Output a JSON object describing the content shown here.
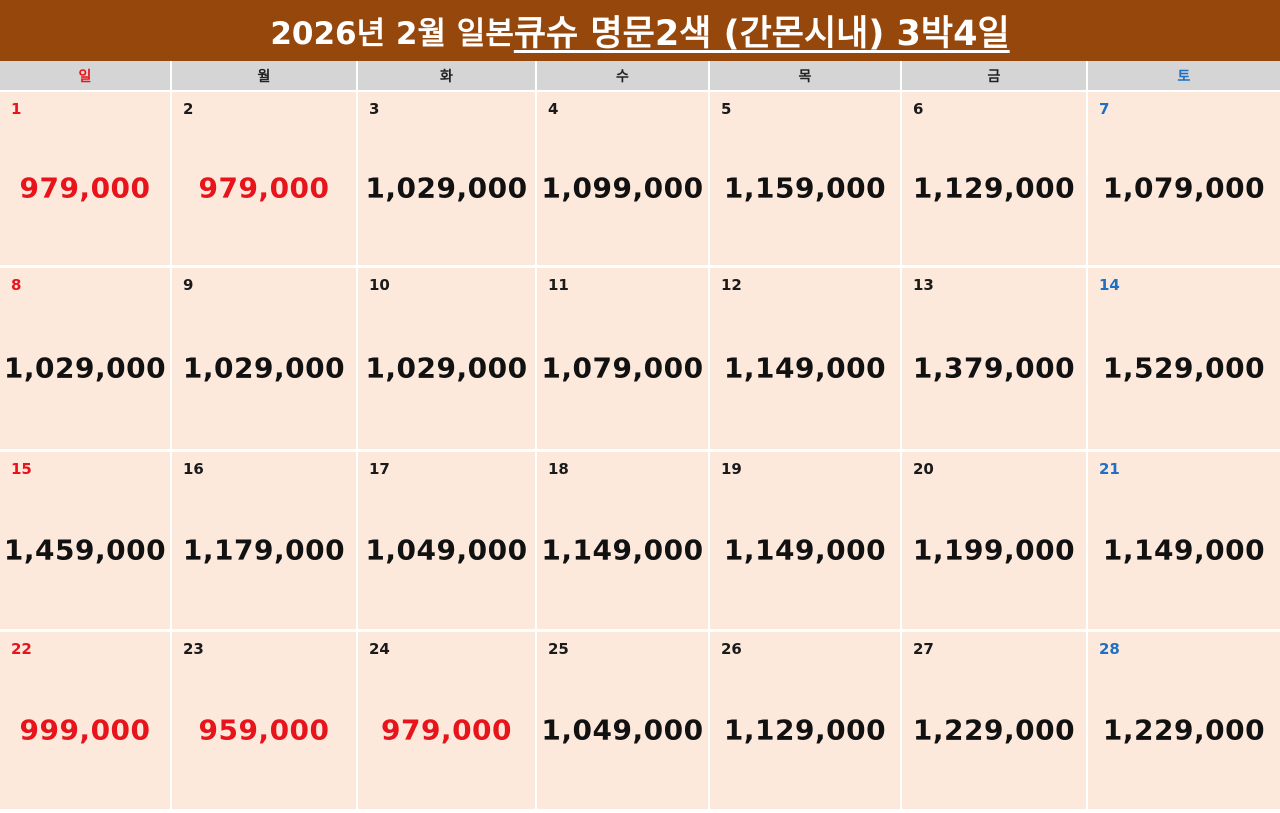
{
  "title": {
    "part1": "2026년 2월 일본 ",
    "part2": "큐슈 명문2색 (간몬시내) 3박4일"
  },
  "colors": {
    "banner": "#96470c",
    "cell_bg": "#fce9dc",
    "header_bg": "#d5d5d5",
    "sunday": "#e8141b",
    "saturday": "#1f6fc4",
    "low_price": "#e8141b",
    "price": "#111111"
  },
  "weekdays": [
    "일",
    "월",
    "화",
    "수",
    "목",
    "금",
    "토"
  ],
  "weeks": [
    [
      {
        "day": "1",
        "price": "979,000",
        "low": true
      },
      {
        "day": "2",
        "price": "979,000",
        "low": true
      },
      {
        "day": "3",
        "price": "1,029,000",
        "low": false
      },
      {
        "day": "4",
        "price": "1,099,000",
        "low": false
      },
      {
        "day": "5",
        "price": "1,159,000",
        "low": false
      },
      {
        "day": "6",
        "price": "1,129,000",
        "low": false
      },
      {
        "day": "7",
        "price": "1,079,000",
        "low": false
      }
    ],
    [
      {
        "day": "8",
        "price": "1,029,000",
        "low": false
      },
      {
        "day": "9",
        "price": "1,029,000",
        "low": false
      },
      {
        "day": "10",
        "price": "1,029,000",
        "low": false
      },
      {
        "day": "11",
        "price": "1,079,000",
        "low": false
      },
      {
        "day": "12",
        "price": "1,149,000",
        "low": false
      },
      {
        "day": "13",
        "price": "1,379,000",
        "low": false
      },
      {
        "day": "14",
        "price": "1,529,000",
        "low": false
      }
    ],
    [
      {
        "day": "15",
        "price": "1,459,000",
        "low": false
      },
      {
        "day": "16",
        "price": "1,179,000",
        "low": false
      },
      {
        "day": "17",
        "price": "1,049,000",
        "low": false
      },
      {
        "day": "18",
        "price": "1,149,000",
        "low": false
      },
      {
        "day": "19",
        "price": "1,149,000",
        "low": false
      },
      {
        "day": "20",
        "price": "1,199,000",
        "low": false
      },
      {
        "day": "21",
        "price": "1,149,000",
        "low": false
      }
    ],
    [
      {
        "day": "22",
        "price": "999,000",
        "low": true
      },
      {
        "day": "23",
        "price": "959,000",
        "low": true
      },
      {
        "day": "24",
        "price": "979,000",
        "low": true
      },
      {
        "day": "25",
        "price": "1,049,000",
        "low": false
      },
      {
        "day": "26",
        "price": "1,129,000",
        "low": false
      },
      {
        "day": "27",
        "price": "1,229,000",
        "low": false
      },
      {
        "day": "28",
        "price": "1,229,000",
        "low": false
      }
    ]
  ]
}
